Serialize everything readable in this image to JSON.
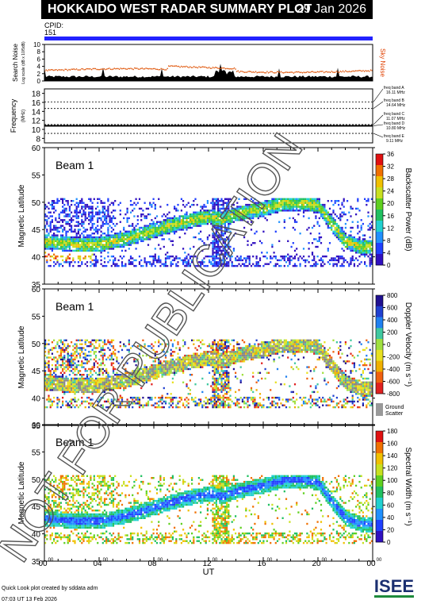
{
  "header": {
    "title": "HOKKAIDO WEST RADAR SUMMARY PLOT",
    "date": "29 Jan 2026"
  },
  "cpid": {
    "label": "CPID:",
    "value": "151"
  },
  "noise_panel": {
    "ylabel": "Search Noise",
    "ylabel_small": "Log scale (dB x 10/5dB)",
    "right_label": "Sky Noise",
    "yticks": [
      "10",
      "8",
      "6",
      "4",
      "2",
      "0"
    ]
  },
  "freq_panel": {
    "ylabel": "Frequency",
    "unit": "(MHz)",
    "yticks": [
      "18",
      "16",
      "14",
      "12",
      "10",
      "8"
    ],
    "bands": [
      {
        "name": "freq band A",
        "freq": "16.11 MHz"
      },
      {
        "name": "freq band B",
        "freq": "14.64 MHz"
      },
      {
        "name": "freq band C",
        "freq": "11.07 MHz"
      },
      {
        "name": "freq band D",
        "freq": "10.80 MHz"
      },
      {
        "name": "freq band E",
        "freq": "9.11 MHz"
      }
    ]
  },
  "panels": [
    {
      "beam": "Beam  1",
      "ylabel": "Magnetic Latitude",
      "cbar_label": "Backscatter Power (dB)",
      "cbar_ticks": [
        "36",
        "32",
        "28",
        "24",
        "20",
        "16",
        "12",
        "8",
        "4",
        "0"
      ]
    },
    {
      "beam": "Beam  1",
      "ylabel": "Magnetic Latitude",
      "cbar_label": "Doppler Velocity (m s⁻¹)",
      "cbar_ticks": [
        "800",
        "600",
        "400",
        "200",
        "0",
        "-200",
        "-400",
        "-600",
        "-800"
      ],
      "gs_label1": "Ground",
      "gs_label2": "Scatter"
    },
    {
      "beam": "Beam  1",
      "ylabel": "Magnetic Latitude",
      "cbar_label": "Spectral Width (m s⁻¹)",
      "cbar_ticks": [
        "180",
        "160",
        "140",
        "120",
        "100",
        "80",
        "60",
        "40",
        "20",
        "0"
      ]
    }
  ],
  "lat_ticks": [
    "60",
    "55",
    "50",
    "45",
    "40",
    "35"
  ],
  "x_axis": {
    "label": "UT",
    "ticks": [
      "00",
      "04",
      "08",
      "12",
      "16",
      "20",
      "00"
    ],
    "tick_sup": "00"
  },
  "footer": {
    "line1": "Quick Look plot created by sddata adm",
    "line2": "07:03 UT 13 Feb 2026"
  },
  "logo_text": "ISEE",
  "watermark": "NOT FOR PUBLICATION",
  "chart_data": {
    "type": "heatmap",
    "title": "HOKKAIDO WEST RADAR SUMMARY PLOT",
    "x_range_hours": [
      0,
      24
    ],
    "lat_range": [
      35,
      60
    ],
    "series": [
      {
        "name": "Backscatter Power (dB)",
        "range": [
          0,
          36
        ]
      },
      {
        "name": "Doppler Velocity (m s⁻¹)",
        "range": [
          -800,
          800
        ]
      },
      {
        "name": "Spectral Width (m s⁻¹)",
        "range": [
          0,
          180
        ]
      }
    ],
    "frequency_MHz": [
      16.11,
      14.64,
      11.07,
      10.8,
      9.11
    ],
    "noise_range": [
      0,
      10
    ],
    "echo_band_lat": {
      "ut": [
        0,
        2,
        4,
        6,
        8,
        10,
        12,
        13,
        14,
        16,
        17.5,
        19,
        20,
        21,
        22,
        23,
        24
      ],
      "lat": [
        43,
        42.5,
        42.5,
        43.5,
        45,
        46.5,
        47.5,
        47,
        48,
        49,
        50,
        50,
        49.5,
        46,
        43,
        42,
        42
      ]
    }
  }
}
